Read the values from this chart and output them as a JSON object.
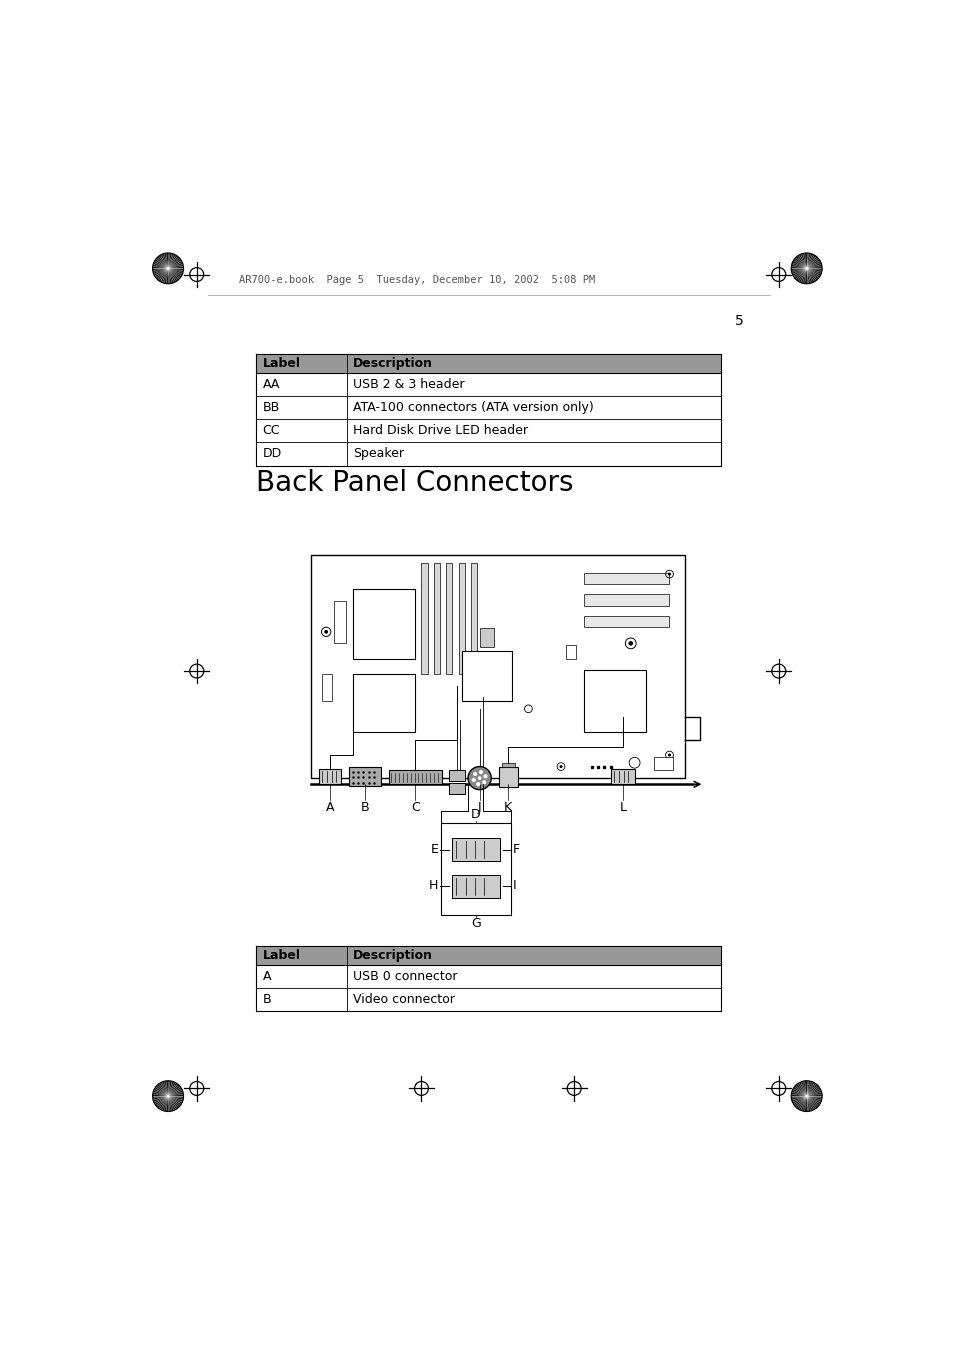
{
  "page_number": "5",
  "header_text": "AR700-e.book  Page 5  Tuesday, December 10, 2002  5:08 PM",
  "section_title": "Back Panel Connectors",
  "table1_header": [
    "Label",
    "Description"
  ],
  "table1_rows": [
    [
      "AA",
      "USB 2 & 3 header"
    ],
    [
      "BB",
      "ATA-100 connectors (ATA version only)"
    ],
    [
      "CC",
      "Hard Disk Drive LED header"
    ],
    [
      "DD",
      "Speaker"
    ]
  ],
  "table2_header": [
    "Label",
    "Description"
  ],
  "table2_rows": [
    [
      "A",
      "USB 0 connector"
    ],
    [
      "B",
      "Video connector"
    ]
  ],
  "header_bg": "#999999",
  "bg_color": "#ffffff"
}
